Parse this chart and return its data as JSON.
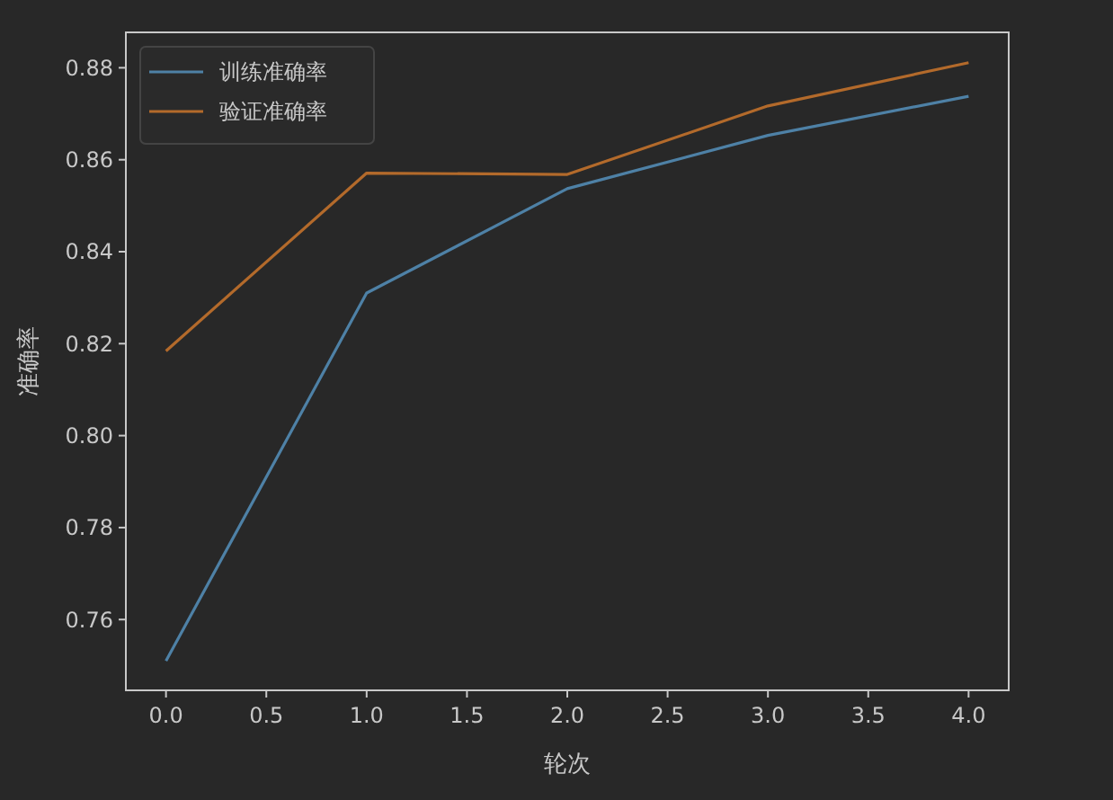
{
  "chart_data": {
    "type": "line",
    "xlabel": "轮次",
    "ylabel": "准确率",
    "x": [
      0,
      1,
      2,
      3,
      4
    ],
    "series": [
      {
        "name": "训练准确率",
        "color": "#4e81a6",
        "values": [
          0.751,
          0.831,
          0.8537,
          0.8653,
          0.8738
        ]
      },
      {
        "name": "验证准确率",
        "color": "#b36a2b",
        "values": [
          0.8184,
          0.8571,
          0.8568,
          0.8717,
          0.8811
        ]
      }
    ],
    "xlim": [
      -0.2,
      4.2
    ],
    "xticks": [
      {
        "value": 0,
        "label": "0.0"
      },
      {
        "value": 0.5,
        "label": "0.5"
      },
      {
        "value": 1,
        "label": "1.0"
      },
      {
        "value": 1.5,
        "label": "1.5"
      },
      {
        "value": 2,
        "label": "2.0"
      },
      {
        "value": 2.5,
        "label": "2.5"
      },
      {
        "value": 3,
        "label": "3.0"
      },
      {
        "value": 3.5,
        "label": "3.5"
      },
      {
        "value": 4,
        "label": "4.0"
      }
    ],
    "ylim": [
      0.7446,
      0.8877
    ],
    "yticks": [
      {
        "value": 0.76,
        "label": "0.76"
      },
      {
        "value": 0.78,
        "label": "0.78"
      },
      {
        "value": 0.8,
        "label": "0.80"
      },
      {
        "value": 0.82,
        "label": "0.82"
      },
      {
        "value": 0.84,
        "label": "0.84"
      },
      {
        "value": 0.86,
        "label": "0.86"
      },
      {
        "value": 0.88,
        "label": "0.88"
      }
    ],
    "legend": "top left",
    "grid": false,
    "marker": "none",
    "line_style": "solid"
  }
}
